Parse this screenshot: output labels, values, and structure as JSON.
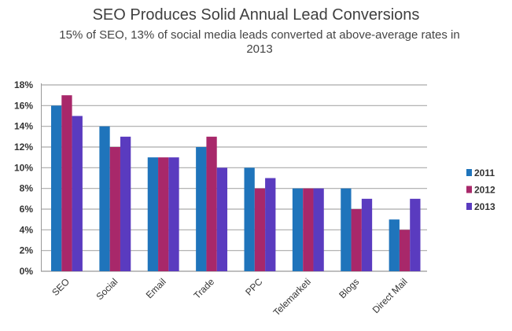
{
  "chart_data": {
    "type": "bar",
    "title": "SEO Produces Solid Annual Lead Conversions",
    "subtitle": "15% of SEO, 13% of social media leads converted at above-average rates in 2013",
    "categories": [
      "SEO",
      "Social",
      "Email",
      "Trade",
      "PPC",
      "Telemarketi",
      "Blogs",
      "Direct Mail"
    ],
    "series": [
      {
        "name": "2011",
        "color": "#1f74bb",
        "values": [
          16,
          14,
          11,
          12,
          10,
          8,
          8,
          5
        ]
      },
      {
        "name": "2012",
        "color": "#a8286a",
        "values": [
          17,
          12,
          11,
          13,
          8,
          8,
          6,
          4
        ]
      },
      {
        "name": "2013",
        "color": "#5a3bbf",
        "values": [
          15,
          13,
          11,
          10,
          9,
          8,
          7,
          7
        ]
      }
    ],
    "y_ticks": [
      "0%",
      "2%",
      "4%",
      "6%",
      "8%",
      "10%",
      "12%",
      "14%",
      "16%",
      "18%"
    ],
    "ylim": [
      0,
      18
    ],
    "y_unit": "%",
    "grid": true,
    "legend_position": "right"
  }
}
